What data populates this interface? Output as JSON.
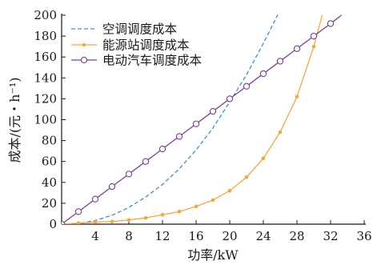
{
  "chart_data": {
    "type": "line",
    "title": "",
    "xlabel": "功率/kW",
    "ylabel": "成本/(元・h⁻¹)",
    "xlim": [
      0,
      36
    ],
    "ylim": [
      0,
      200
    ],
    "xticks": [
      4,
      8,
      12,
      16,
      20,
      24,
      28,
      32,
      36
    ],
    "yticks": [
      0,
      20,
      40,
      60,
      80,
      100,
      120,
      140,
      160,
      180,
      200
    ],
    "grid": false,
    "legend_position": "top-left",
    "series": [
      {
        "name": "空调调度成本",
        "color": "#3a8fd6",
        "style": "dashed",
        "marker": "none",
        "points": [
          [
            0,
            0
          ],
          [
            2,
            0.7
          ],
          [
            4,
            3.5
          ],
          [
            6,
            8.5
          ],
          [
            8,
            16
          ],
          [
            10,
            26
          ],
          [
            12,
            38
          ],
          [
            14,
            53
          ],
          [
            16,
            71
          ],
          [
            18,
            92
          ],
          [
            20,
            117
          ],
          [
            22,
            143
          ],
          [
            24,
            173
          ],
          [
            26,
            205
          ]
        ]
      },
      {
        "name": "能源站调度成本",
        "color": "#f2a93b",
        "style": "solid",
        "marker": "dot",
        "points": [
          [
            0,
            0
          ],
          [
            2,
            1
          ],
          [
            4,
            2
          ],
          [
            6,
            2.5
          ],
          [
            8,
            4
          ],
          [
            10,
            6
          ],
          [
            12,
            9
          ],
          [
            14,
            12
          ],
          [
            16,
            17
          ],
          [
            18,
            23
          ],
          [
            20,
            32
          ],
          [
            22,
            45
          ],
          [
            24,
            63
          ],
          [
            26,
            88
          ],
          [
            28,
            122
          ],
          [
            30,
            170
          ],
          [
            31,
            200
          ]
        ]
      },
      {
        "name": "电动汽车调度成本",
        "color": "#7b3f98",
        "style": "solid",
        "marker": "circle",
        "points": [
          [
            0,
            0
          ],
          [
            2,
            12
          ],
          [
            4,
            24
          ],
          [
            6,
            36
          ],
          [
            8,
            48
          ],
          [
            10,
            60
          ],
          [
            12,
            72
          ],
          [
            14,
            84
          ],
          [
            16,
            96
          ],
          [
            18,
            108
          ],
          [
            20,
            120
          ],
          [
            22,
            132
          ],
          [
            24,
            144
          ],
          [
            26,
            156
          ],
          [
            28,
            168
          ],
          [
            30,
            180
          ],
          [
            32,
            192
          ],
          [
            33.3,
            200
          ]
        ],
        "marker_points": [
          [
            0,
            0
          ],
          [
            2,
            12
          ],
          [
            4,
            24
          ],
          [
            6,
            36
          ],
          [
            8,
            48
          ],
          [
            10,
            60
          ],
          [
            12,
            72
          ],
          [
            14,
            84
          ],
          [
            16,
            96
          ],
          [
            18,
            108
          ],
          [
            20,
            120
          ],
          [
            22,
            132
          ],
          [
            24,
            144
          ],
          [
            26,
            156
          ],
          [
            28,
            168
          ],
          [
            30,
            180
          ],
          [
            32,
            192
          ]
        ]
      }
    ]
  }
}
